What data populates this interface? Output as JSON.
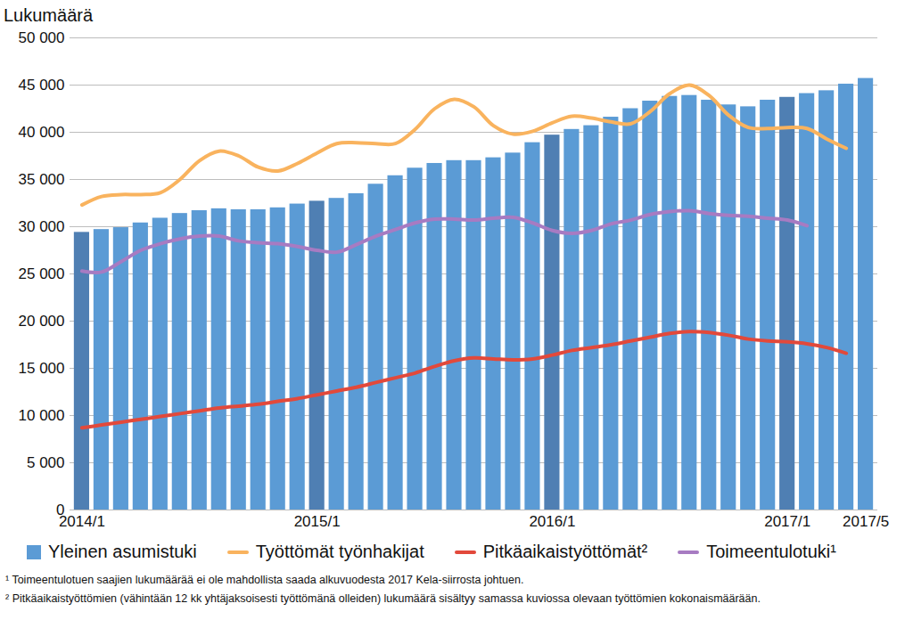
{
  "chart_data": {
    "type": "bar",
    "y_label": "Lukumäärä",
    "categories": [
      "2014/1",
      null,
      null,
      null,
      null,
      null,
      null,
      null,
      null,
      null,
      null,
      null,
      "2015/1",
      null,
      null,
      null,
      null,
      null,
      null,
      null,
      null,
      null,
      null,
      null,
      "2016/1",
      null,
      null,
      null,
      null,
      null,
      null,
      null,
      null,
      null,
      null,
      null,
      "2017/1",
      null,
      null,
      null,
      "2017/5"
    ],
    "series": [
      {
        "name": "Yleinen asumistuki",
        "type": "bar",
        "color": "#5b9bd5",
        "colors": [
          "#4f7fb3",
          "#5b9bd5",
          "#5b9bd5",
          "#5b9bd5",
          "#5b9bd5",
          "#5b9bd5",
          "#5b9bd5",
          "#5b9bd5",
          "#5b9bd5",
          "#5b9bd5",
          "#5b9bd5",
          "#5b9bd5",
          "#4f7fb3",
          "#5b9bd5",
          "#5b9bd5",
          "#5b9bd5",
          "#5b9bd5",
          "#5b9bd5",
          "#5b9bd5",
          "#5b9bd5",
          "#5b9bd5",
          "#5b9bd5",
          "#5b9bd5",
          "#5b9bd5",
          "#4f7fb3",
          "#5b9bd5",
          "#5b9bd5",
          "#5b9bd5",
          "#5b9bd5",
          "#5b9bd5",
          "#5b9bd5",
          "#5b9bd5",
          "#5b9bd5",
          "#5b9bd5",
          "#5b9bd5",
          "#5b9bd5",
          "#4f7fb3",
          "#5b9bd5",
          "#5b9bd5",
          "#5b9bd5",
          "#5b9bd5"
        ],
        "values": [
          29400,
          29700,
          29900,
          30400,
          30900,
          31400,
          31700,
          31900,
          31800,
          31800,
          32000,
          32400,
          32700,
          33000,
          33500,
          34500,
          35400,
          36200,
          36700,
          37000,
          37000,
          37300,
          37800,
          38900,
          39700,
          40300,
          40700,
          41600,
          42500,
          43300,
          43800,
          43900,
          43400,
          42900,
          42700,
          43400,
          43700,
          44100,
          44400,
          45100,
          45700
        ]
      },
      {
        "name": "Työttömät työnhakijat",
        "type": "line",
        "color": "#f9b35e",
        "values": [
          32300,
          33200,
          33400,
          33400,
          33600,
          35000,
          37000,
          38000,
          37500,
          36300,
          35900,
          36700,
          37800,
          38800,
          38900,
          38800,
          38800,
          40300,
          42500,
          43500,
          42700,
          40700,
          39800,
          40100,
          41000,
          41700,
          41500,
          41100,
          40900,
          42200,
          44100,
          45000,
          43900,
          41800,
          40500,
          40400,
          40500,
          40400,
          39300,
          38300,
          null
        ]
      },
      {
        "name": "Pitkäaikaistyöttömät²",
        "type": "line",
        "color": "#e2493b",
        "values": [
          8700,
          9000,
          9300,
          9600,
          9900,
          10200,
          10500,
          10800,
          11000,
          11200,
          11500,
          11800,
          12200,
          12600,
          13000,
          13500,
          14000,
          14500,
          15200,
          15800,
          16100,
          16000,
          15900,
          16000,
          16400,
          16900,
          17200,
          17500,
          17900,
          18300,
          18700,
          18900,
          18800,
          18500,
          18100,
          17900,
          17800,
          17600,
          17200,
          16600,
          null
        ]
      },
      {
        "name": "Toimeentulotuki¹",
        "type": "line",
        "color": "#a77bc2",
        "values": [
          25300,
          25200,
          26300,
          27500,
          28200,
          28700,
          29000,
          29000,
          28500,
          28300,
          28200,
          27900,
          27500,
          27300,
          28100,
          29000,
          29700,
          30400,
          30800,
          30800,
          30700,
          30900,
          31000,
          30400,
          29600,
          29300,
          29600,
          30300,
          30700,
          31300,
          31600,
          31700,
          31400,
          31200,
          31100,
          30900,
          30700,
          30100,
          null,
          null,
          null
        ]
      }
    ],
    "ylim": [
      0,
      50000
    ],
    "yticks": [
      0,
      {
        "value": 5000,
        "label": "5 000"
      },
      {
        "value": 10000,
        "label": "10 000"
      },
      {
        "value": 15000,
        "label": "15 000"
      },
      {
        "value": 20000,
        "label": "20 000"
      },
      {
        "value": 25000,
        "label": "25 000"
      },
      {
        "value": 30000,
        "label": "30 000"
      },
      {
        "value": 35000,
        "label": "35 000"
      },
      {
        "value": 40000,
        "label": "40 000"
      },
      {
        "value": 45000,
        "label": "45 000"
      },
      {
        "value": 50000,
        "label": "50 000"
      }
    ],
    "grid": true,
    "legend": "bottom",
    "footnotes": [
      "¹ Toimeentulotuen saajien lukumäärää ei ole mahdollista saada alkuvuodesta 2017 Kela-siirrosta johtuen.",
      "² Pitkäaikaistyöttömien (vähintään 12 kk yhtäjaksoisesti työttömänä olleiden) lukumäärä sisältyy samassa kuviossa olevaan työttömien kokonaismäärään."
    ]
  }
}
